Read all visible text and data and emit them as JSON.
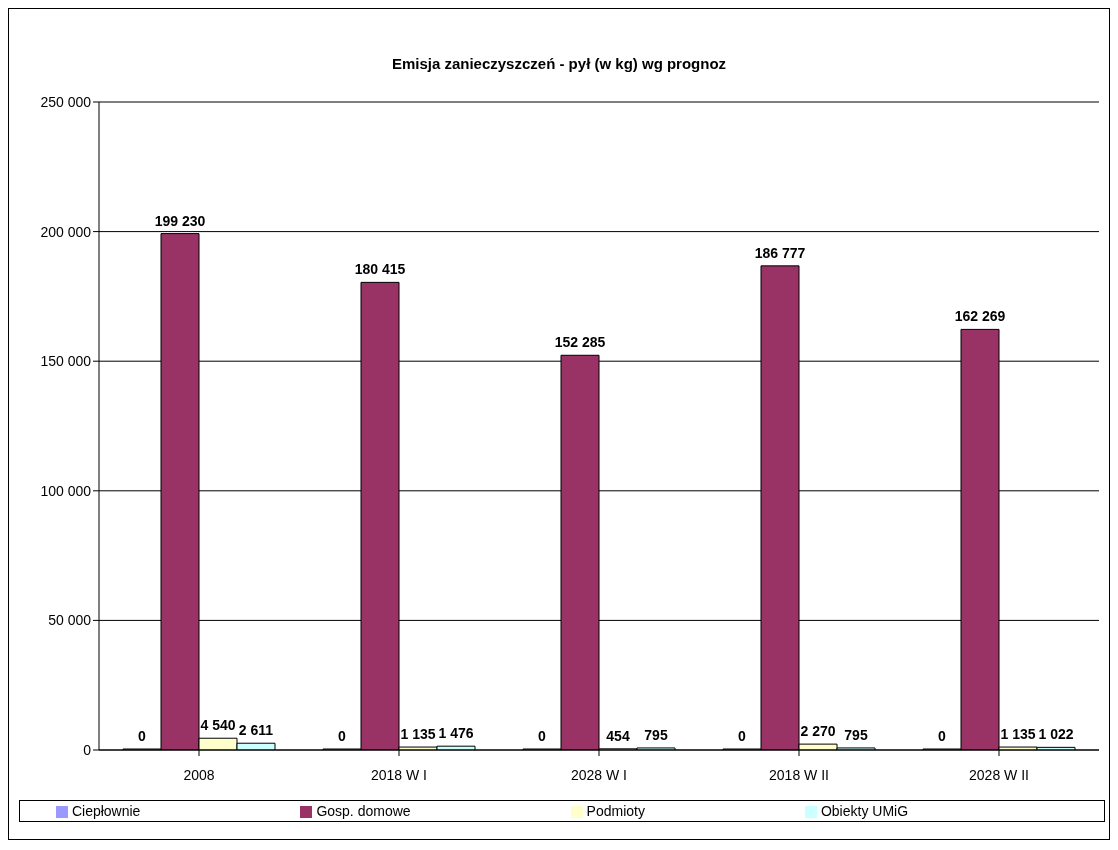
{
  "chart_data": {
    "type": "bar",
    "title": "Emisja zanieczyszczeń -  pył (w kg) wg prognoz",
    "categories": [
      "2008",
      "2018 W I",
      "2028 W I",
      "2018 W II",
      "2028 W II"
    ],
    "series": [
      {
        "name": "Ciepłownie",
        "color": "#9999ff",
        "values": [
          0,
          0,
          0,
          0,
          0
        ],
        "value_labels": [
          "0",
          "0",
          "0",
          "0",
          "0"
        ]
      },
      {
        "name": "Gosp. domowe",
        "color": "#993366",
        "values": [
          199230,
          180415,
          152285,
          186777,
          162269
        ],
        "value_labels": [
          "199 230",
          "180 415",
          "152 285",
          "186 777",
          "162 269"
        ]
      },
      {
        "name": "Podmioty",
        "color": "#ffffcc",
        "values": [
          4540,
          1135,
          454,
          2270,
          1135
        ],
        "value_labels": [
          "4 540",
          "1 135",
          "454",
          "2 270",
          "1 135"
        ]
      },
      {
        "name": "Obiekty UMiG",
        "color": "#ccffff",
        "values": [
          2611,
          1476,
          795,
          795,
          1022
        ],
        "value_labels": [
          "2 611",
          "1 476",
          "795",
          "795",
          "1 022"
        ]
      }
    ],
    "ylim": [
      0,
      250000
    ],
    "yticks": [
      {
        "value": 0,
        "label": "0"
      },
      {
        "value": 50000,
        "label": "50 000"
      },
      {
        "value": 100000,
        "label": "100 000"
      },
      {
        "value": 150000,
        "label": "150 000"
      },
      {
        "value": 200000,
        "label": "200 000"
      },
      {
        "value": 250000,
        "label": "250 000"
      }
    ],
    "grid": "y",
    "legend": "bottom"
  }
}
